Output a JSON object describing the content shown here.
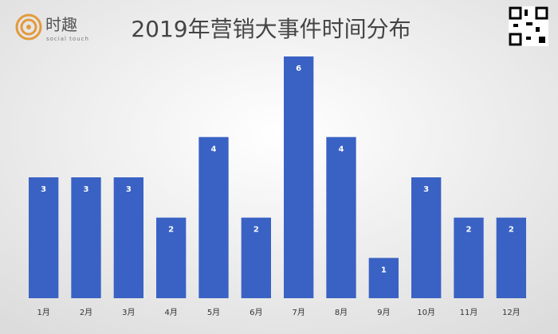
{
  "chart_data": {
    "type": "bar",
    "title": "2019年营销大事件时间分布",
    "logo_text": "时趣",
    "logo_subtext": "social touch",
    "categories": [
      "1月",
      "2月",
      "3月",
      "4月",
      "5月",
      "6月",
      "7月",
      "8月",
      "9月",
      "10月",
      "11月",
      "12月"
    ],
    "values": [
      3,
      3,
      3,
      2,
      4,
      2,
      6,
      4,
      1,
      3,
      2,
      2
    ],
    "color": "#3a62c4",
    "ylim": [
      0,
      6
    ]
  }
}
